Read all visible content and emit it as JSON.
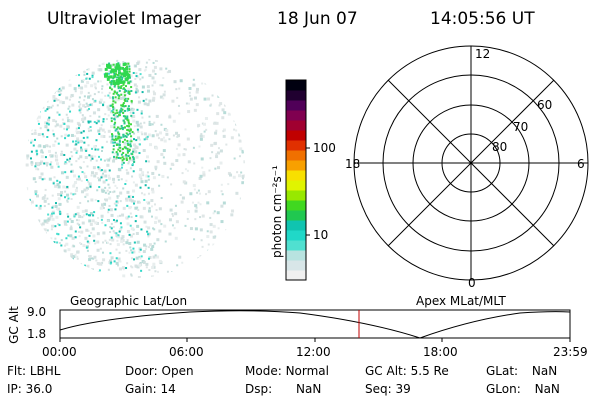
{
  "header": {
    "title": "Ultraviolet Imager",
    "date": "18 Jun 07",
    "time": "14:05:56 UT"
  },
  "colorbar": {
    "label": "photon cm⁻²s⁻¹",
    "ticks": [
      "100",
      "10"
    ],
    "colors": [
      "#f0f0f0",
      "#d8e6e8",
      "#b8e3e0",
      "#50e0d0",
      "#20d8c8",
      "#10c4b0",
      "#20c850",
      "#40d820",
      "#98e800",
      "#e0f400",
      "#f8e000",
      "#f8a000",
      "#f07000",
      "#e03000",
      "#c00000",
      "#a00030",
      "#800050",
      "#500058",
      "#200030",
      "#000010"
    ]
  },
  "polar": {
    "mlt_labels": {
      "top": "12",
      "left": "18",
      "right": "6",
      "bottom": "0"
    },
    "lat_labels": [
      "60",
      "70",
      "80"
    ]
  },
  "altitude_plot": {
    "y_axis_label": "GC Alt",
    "y_ticks": [
      "9.0",
      "1.8"
    ],
    "left_title": "Geographic Lat/Lon",
    "right_title": "Apex MLat/MLT",
    "x_ticks": [
      "00:00",
      "06:00",
      "12:00",
      "18:00",
      "23:59"
    ],
    "current_time_marker": "14:05:56"
  },
  "info": {
    "row1": [
      {
        "label": "Flt:",
        "value": "LBHL"
      },
      {
        "label": "Door:",
        "value": "Open"
      },
      {
        "label": "Mode:",
        "value": "Normal"
      },
      {
        "label": "GC Alt:",
        "value": "5.5 Re"
      },
      {
        "label": "GLat:",
        "value": "NaN"
      }
    ],
    "row2": [
      {
        "label": "IP:",
        "value": "36.0"
      },
      {
        "label": "Gain:",
        "value": "14"
      },
      {
        "label": "Dsp:",
        "value": "NaN"
      },
      {
        "label": "Seq:",
        "value": "39"
      },
      {
        "label": "GLon:",
        "value": "NaN"
      }
    ]
  }
}
